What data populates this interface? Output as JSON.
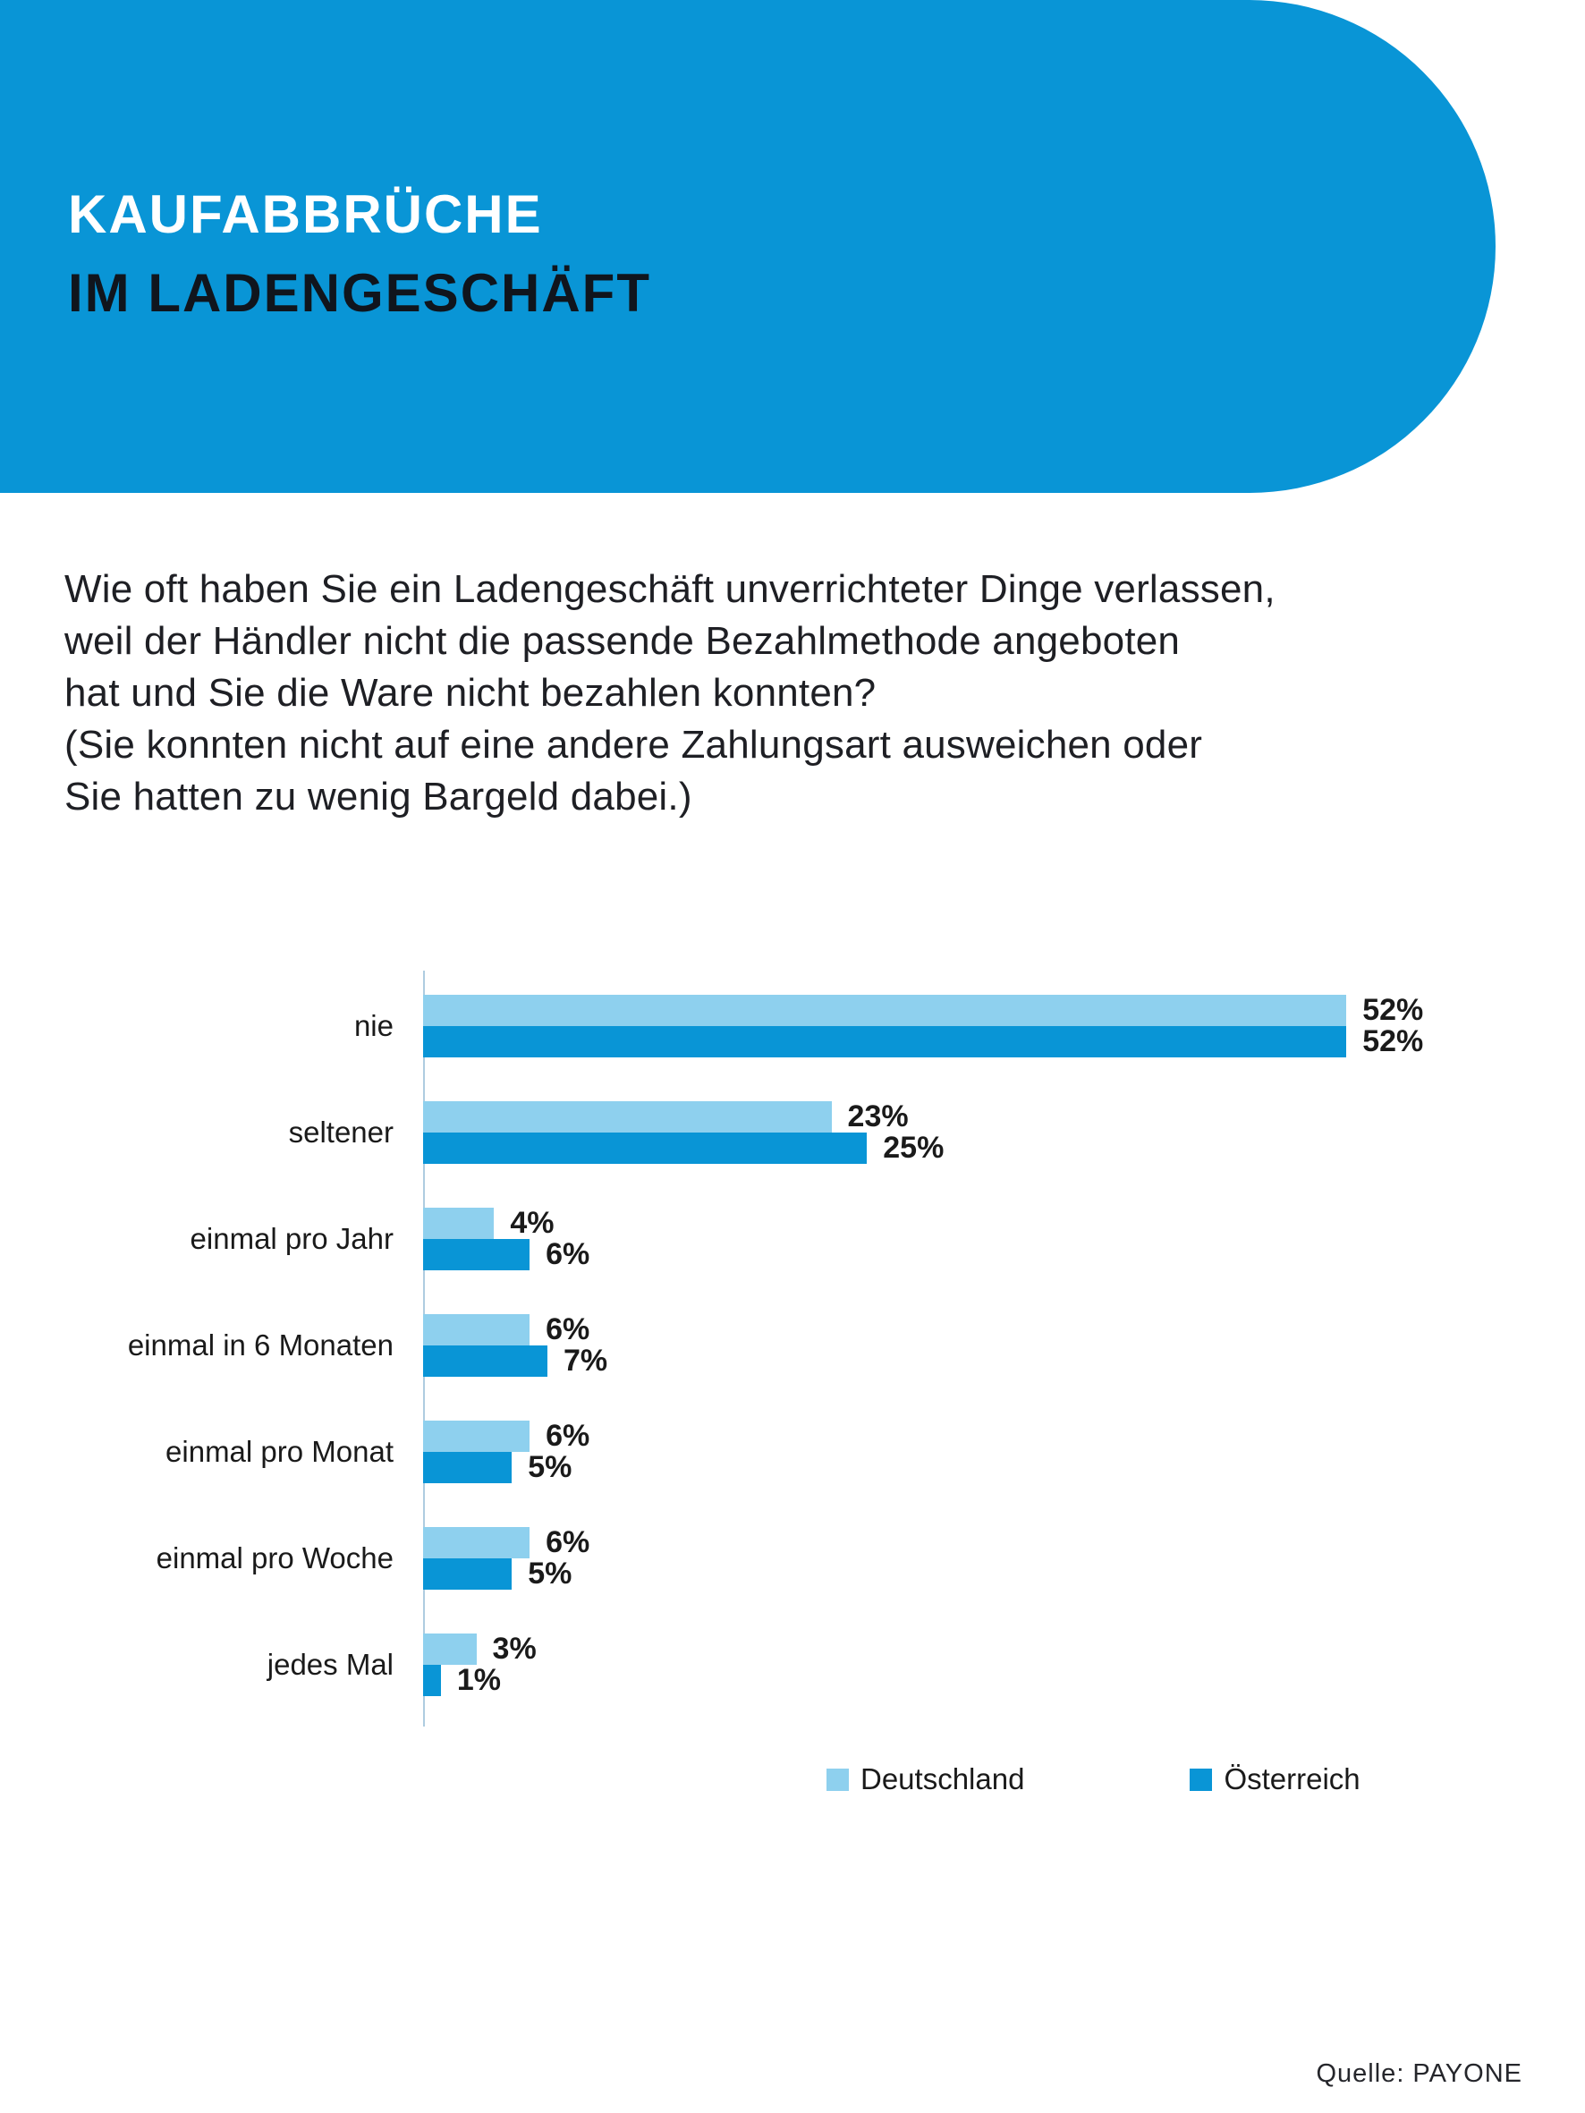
{
  "header": {
    "title_line1": "KAUFABBRÜCHE",
    "title_line2": "IM LADENGESCHÄFT",
    "bg_color": "#0995d6"
  },
  "question": {
    "lines": [
      "Wie oft haben Sie ein Ladengeschäft unverrichteter Dinge verlassen,",
      "weil der Händler nicht die passende Bezahlmethode angeboten",
      "hat und Sie die Ware nicht bezahlen konnten?",
      "(Sie konnten nicht auf eine andere Zahlungsart ausweichen oder",
      "Sie hatten zu wenig Bargeld dabei.)"
    ]
  },
  "chart_data": {
    "type": "bar",
    "orientation": "horizontal",
    "title": "",
    "xlabel": "",
    "ylabel": "",
    "categories": [
      "nie",
      "seltener",
      "einmal pro Jahr",
      "einmal in 6 Monaten",
      "einmal pro Monat",
      "einmal pro Woche",
      "jedes Mal"
    ],
    "series": [
      {
        "name": "Deutschland",
        "color": "#8ed0ee",
        "values": [
          52,
          23,
          4,
          6,
          6,
          6,
          3
        ]
      },
      {
        "name": "Österreich",
        "color": "#0995d6",
        "values": [
          52,
          25,
          6,
          7,
          5,
          5,
          1
        ]
      }
    ],
    "value_suffix": "%",
    "xlim": [
      0,
      56
    ],
    "grid": false,
    "legend_position": "bottom",
    "axis_color": "#aecce0"
  },
  "footer": {
    "source": "Quelle: PAYONE"
  }
}
